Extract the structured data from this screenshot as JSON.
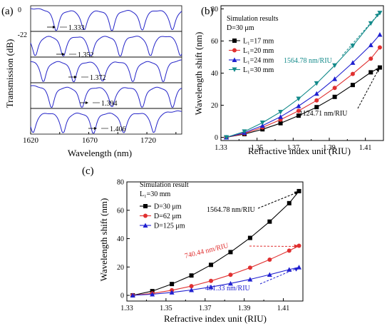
{
  "panel_a": {
    "label": "(a)",
    "ylabel": "Transmission (dB)",
    "xlabel": "Wavelength (nm)",
    "y_ticks": [
      "0",
      "-22"
    ],
    "x_ticks": [
      "1620",
      "1670",
      "1720"
    ],
    "annotations": [
      "1.333",
      "1.352",
      "1.372",
      "1.394",
      "1.406"
    ]
  },
  "panel_b": {
    "label": "(b)",
    "title_line1": "Simulation results",
    "title_line2": "D=30 μm",
    "ylabel": "Wavelength shift (nm)",
    "xlabel": "Refractive index unit (RIU)",
    "annot_top": "1564.78 nm/RIU",
    "annot_bottom": "1124.71 nm/RIU"
  },
  "panel_c": {
    "label": "(c)",
    "title_line1": "Simulation result",
    "title_line2": "L₁=30 mm",
    "ylabel": "Wavelength shift (nm)",
    "xlabel": "Refractive index unit (RIU)",
    "annot_black": "1564.78 nm/RIU",
    "annot_red": "740.44 nm/RIU",
    "annot_blue": "431.33 nm/RIU"
  },
  "chart_data": [
    {
      "type": "line",
      "panel": "a",
      "xlabel": "Wavelength (nm)",
      "ylabel": "Transmission (dB)",
      "xlim": [
        1620,
        1750
      ],
      "ylim": [
        -22,
        0
      ],
      "series": [
        {
          "name": "1.333",
          "dips": [
            1642,
            1666,
            1690,
            1716,
            1742
          ]
        },
        {
          "name": "1.352",
          "dips": [
            1624,
            1648,
            1672,
            1697,
            1723,
            1749
          ]
        },
        {
          "name": "1.372",
          "dips": [
            1631,
            1657,
            1682,
            1708,
            1734
          ]
        },
        {
          "name": "1.394",
          "dips": [
            1638,
            1664,
            1690,
            1716,
            1742
          ]
        },
        {
          "name": "1.406",
          "dips": [
            1622,
            1648,
            1674,
            1700,
            1726
          ]
        }
      ]
    },
    {
      "type": "line",
      "panel": "b",
      "xlabel": "Refractive index unit (RIU)",
      "ylabel": "Wavelength shift (nm)",
      "xlim": [
        1.33,
        1.42
      ],
      "ylim": [
        -2,
        82
      ],
      "x_ticks": [
        1.33,
        1.35,
        1.37,
        1.39,
        1.41
      ],
      "y_ticks": [
        0,
        20,
        40,
        60,
        80
      ],
      "series": [
        {
          "name": "L₁=17 mm",
          "color": "#000000",
          "marker": "square",
          "x": [
            1.333,
            1.343,
            1.353,
            1.363,
            1.373,
            1.383,
            1.393,
            1.403,
            1.413,
            1.418
          ],
          "y": [
            0,
            2.0,
            5.0,
            8.8,
            13.5,
            18.8,
            25.2,
            32.6,
            40.5,
            43.5
          ]
        },
        {
          "name": "L₁=20 mm",
          "color": "#e03030",
          "marker": "circle",
          "x": [
            1.333,
            1.343,
            1.353,
            1.363,
            1.373,
            1.383,
            1.393,
            1.403,
            1.413,
            1.418
          ],
          "y": [
            0,
            2.4,
            6.2,
            11.0,
            16.5,
            23.0,
            30.8,
            39.5,
            49.0,
            56.0
          ]
        },
        {
          "name": "L₁=24 mm",
          "color": "#2020d0",
          "marker": "triangle-up",
          "x": [
            1.333,
            1.343,
            1.353,
            1.363,
            1.373,
            1.383,
            1.393,
            1.403,
            1.413,
            1.418
          ],
          "y": [
            0,
            2.9,
            7.3,
            12.8,
            19.5,
            27.2,
            36.4,
            46.5,
            57.5,
            64.0
          ]
        },
        {
          "name": "L₁=30 mm",
          "color": "#138a8a",
          "marker": "triangle-down",
          "x": [
            1.333,
            1.343,
            1.353,
            1.363,
            1.373,
            1.383,
            1.393,
            1.403,
            1.413,
            1.418
          ],
          "y": [
            0,
            3.6,
            9.1,
            15.8,
            24.0,
            33.6,
            44.8,
            57.0,
            71.0,
            77.5
          ]
        }
      ]
    },
    {
      "type": "line",
      "panel": "c",
      "xlabel": "Refractive index unit (RIU)",
      "ylabel": "Wavelength shift (nm)",
      "xlim": [
        1.33,
        1.42
      ],
      "ylim": [
        -4,
        80
      ],
      "x_ticks": [
        1.33,
        1.35,
        1.37,
        1.39,
        1.41
      ],
      "y_ticks": [
        0,
        20,
        40,
        60,
        80
      ],
      "series": [
        {
          "name": "D=30 μm",
          "color": "#000000",
          "marker": "square",
          "x": [
            1.333,
            1.343,
            1.353,
            1.363,
            1.373,
            1.383,
            1.393,
            1.403,
            1.413,
            1.418
          ],
          "y": [
            0,
            3.0,
            8.0,
            14.0,
            21.5,
            30.5,
            40.5,
            52.0,
            65.0,
            73.5
          ]
        },
        {
          "name": "D=62 μm",
          "color": "#e03030",
          "marker": "circle",
          "x": [
            1.333,
            1.343,
            1.353,
            1.363,
            1.373,
            1.383,
            1.393,
            1.403,
            1.413,
            1.418
          ],
          "y": [
            0,
            1.4,
            3.6,
            6.5,
            10.2,
            14.5,
            19.5,
            25.2,
            31.5,
            35.0
          ]
        },
        {
          "name": "D=125 μm",
          "color": "#2020d0",
          "marker": "triangle-up",
          "x": [
            1.333,
            1.343,
            1.353,
            1.363,
            1.373,
            1.383,
            1.393,
            1.403,
            1.413,
            1.418
          ],
          "y": [
            0,
            0.8,
            2.1,
            3.8,
            5.9,
            8.4,
            11.3,
            14.6,
            18.2,
            19.8
          ]
        }
      ]
    }
  ]
}
